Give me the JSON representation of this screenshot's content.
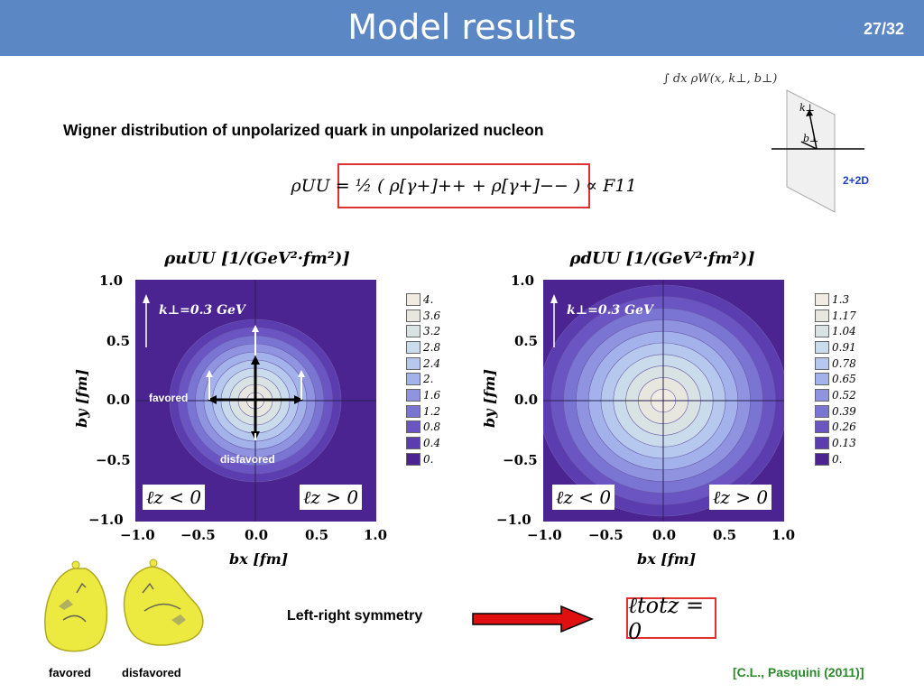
{
  "header": {
    "title": "Model results",
    "page": "27/32"
  },
  "subtitle": "Wigner distribution of unpolarized quark in unpolarized nucleon",
  "formula_main": "ρUU = ½ ( ρ[γ+]++ + ρ[γ+]−− ) ∝ F11",
  "formula_integral": "∫ dx ρW(x, k⊥, b⊥)",
  "diagram": {
    "k_label": "k⊥",
    "b_label": "b⊥",
    "dim_label": "2+2D"
  },
  "plots": [
    {
      "title": "ρuUU [1/(GeV²·fm²)]",
      "k_label": "k⊥=0.3 GeV",
      "xlabel": "bx [fm]",
      "ylabel": "by [fm]",
      "x_ticks": [
        "−1.0",
        "−0.5",
        "0.0",
        "0.5",
        "1.0"
      ],
      "y_ticks": [
        "1.0",
        "0.5",
        "0.0",
        "−0.5",
        "−1.0"
      ],
      "lz_left": "ℓz < 0",
      "lz_right": "ℓz > 0",
      "favored_label": "favored",
      "disfavored_label": "disfavored",
      "legend": [
        "4.",
        "3.6",
        "3.2",
        "2.8",
        "2.4",
        "2.",
        "1.6",
        "1.2",
        "0.8",
        "0.4",
        "0."
      ]
    },
    {
      "title": "ρdUU [1/(GeV²·fm²)]",
      "k_label": "k⊥=0.3 GeV",
      "xlabel": "bx [fm]",
      "ylabel": "by [fm]",
      "x_ticks": [
        "−1.0",
        "−0.5",
        "0.0",
        "0.5",
        "1.0"
      ],
      "y_ticks": [
        "1.0",
        "0.5",
        "0.0",
        "−0.5",
        "−1.0"
      ],
      "lz_left": "ℓz < 0",
      "lz_right": "ℓz > 0",
      "legend": [
        "1.3",
        "1.17",
        "1.04",
        "0.91",
        "0.78",
        "0.65",
        "0.52",
        "0.39",
        "0.26",
        "0.13",
        "0."
      ]
    }
  ],
  "legend_colors": [
    "#f1ece3",
    "#e7e6df",
    "#d9e3e4",
    "#cadbeb",
    "#b6c8ee",
    "#a4b2ec",
    "#8f93e0",
    "#7a74d2",
    "#6a55c2",
    "#5c3db0",
    "#4b2492"
  ],
  "balloons": {
    "favored": "favored",
    "disfavored": "disfavored"
  },
  "bottom": {
    "symmetry_label": "Left-right symmetry",
    "ltot": "ℓtotz = 0",
    "citation": "[C.L., Pasquini (2011)]"
  }
}
